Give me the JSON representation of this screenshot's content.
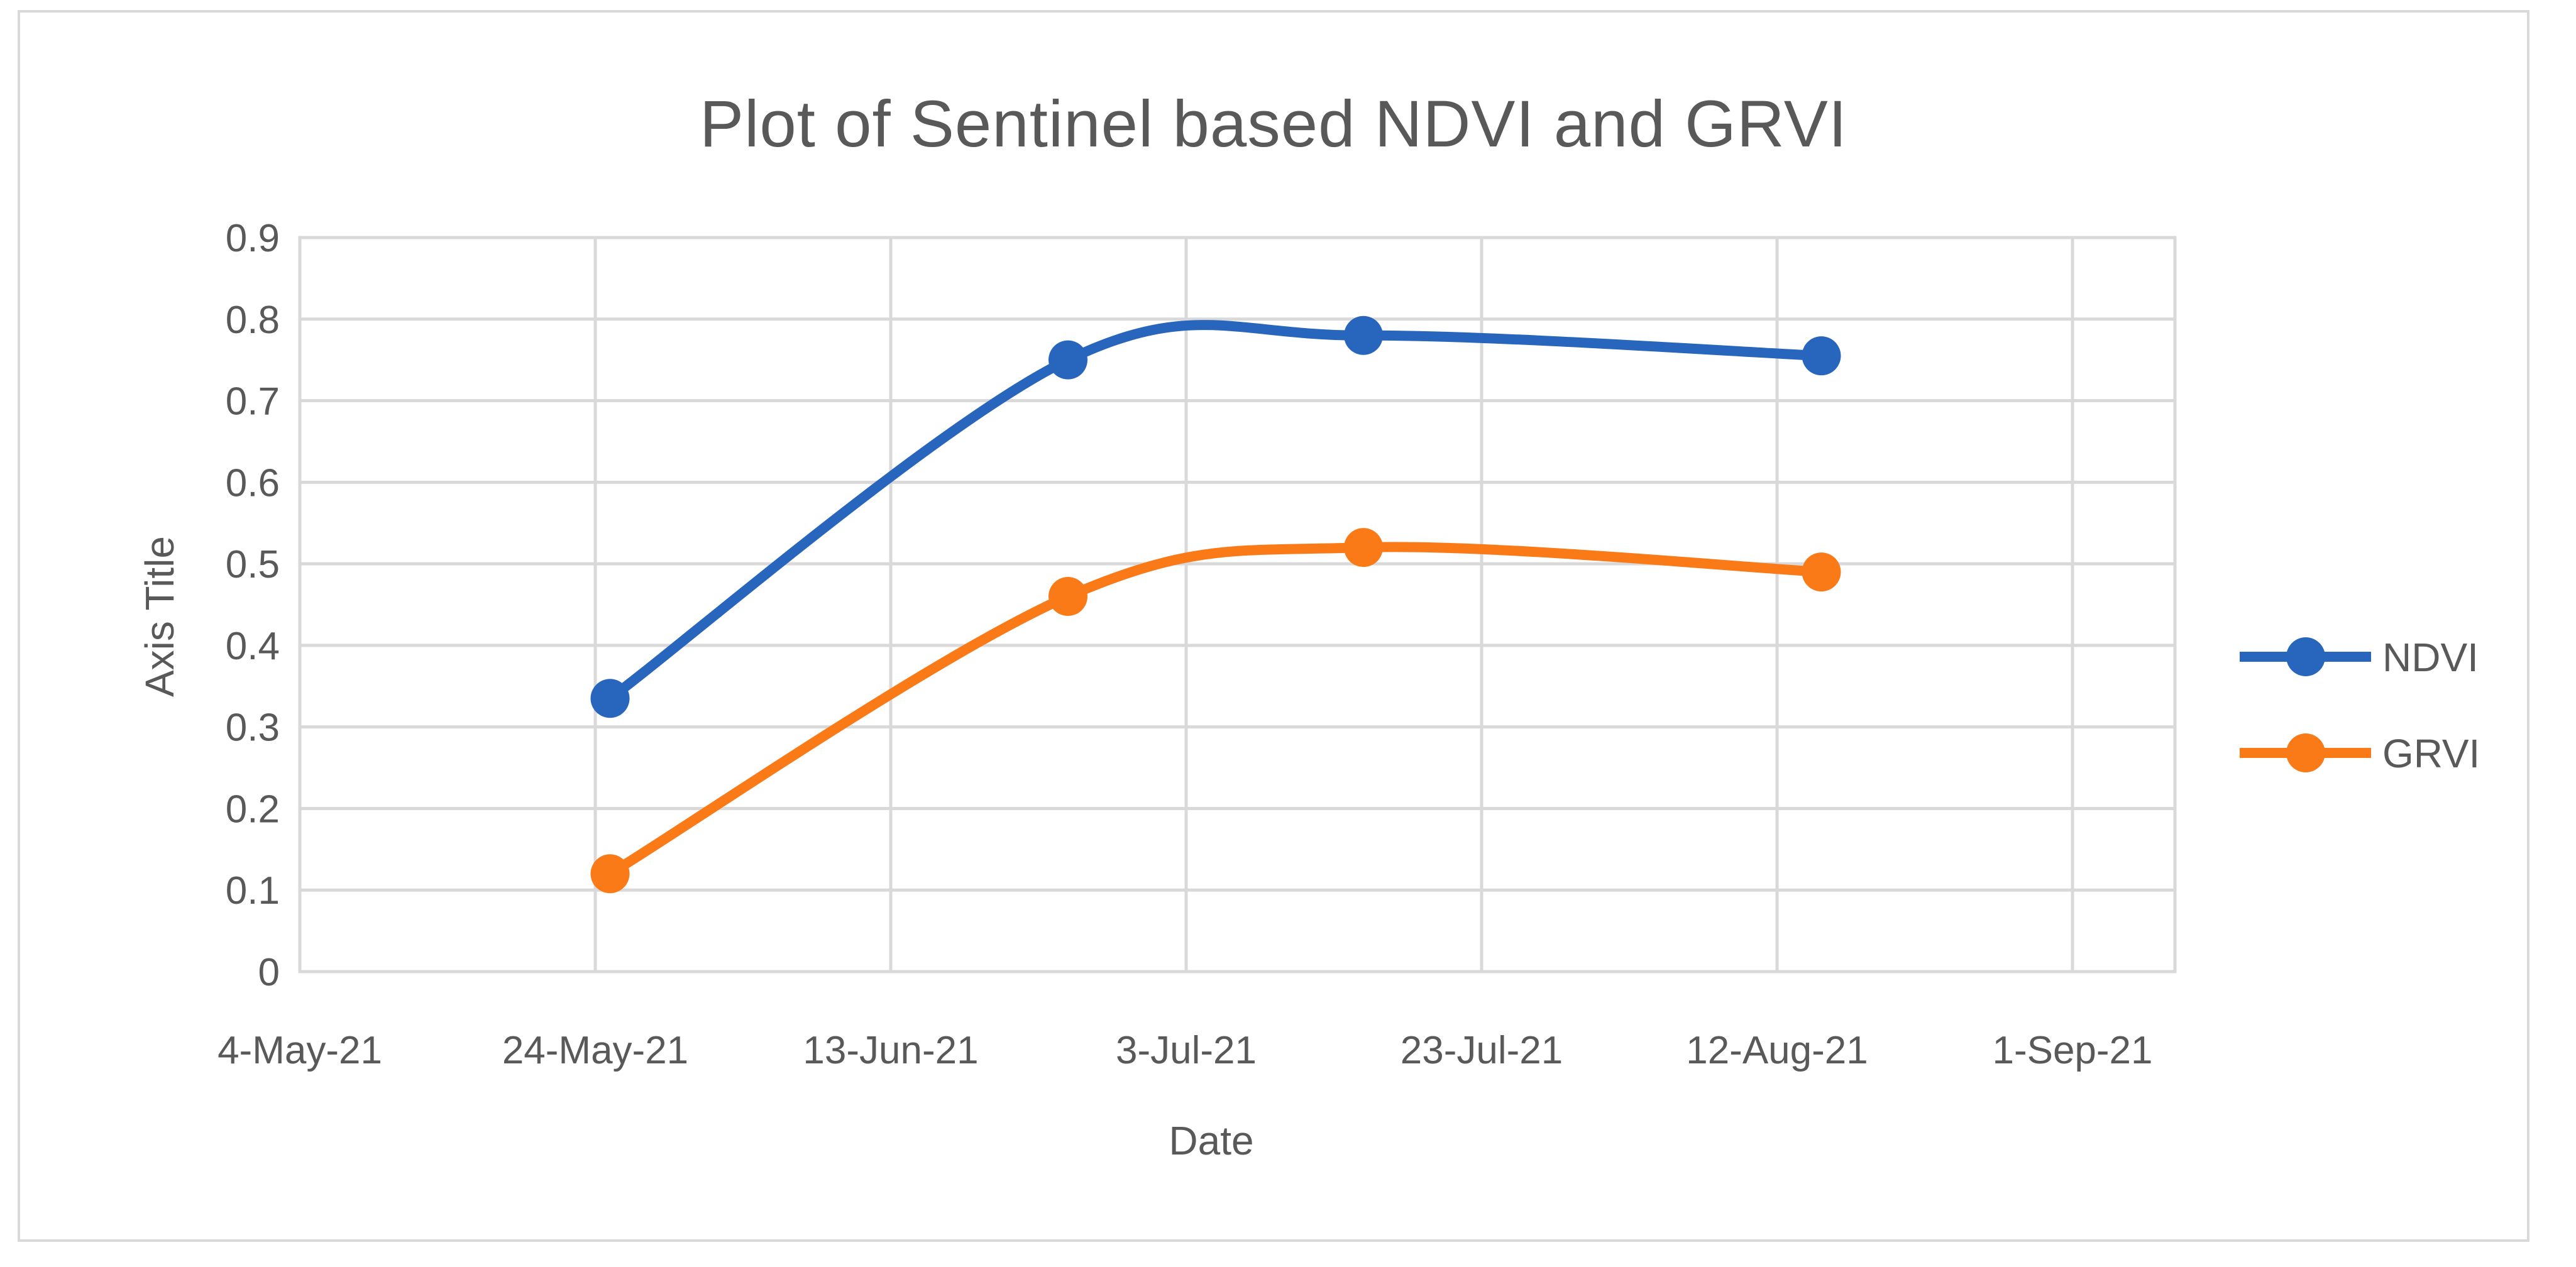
{
  "chart": {
    "title": "Plot of Sentinel based NDVI and GRVI",
    "x_axis_title": "Date",
    "y_axis_title": "Axis Title",
    "colors": {
      "ndvi_blue": "#2866be",
      "grvi_orange": "#fa7a18",
      "gridline_gray": "#d9d9d9",
      "text_gray": "#595959",
      "background": "#ffffff"
    }
  },
  "chart_data": {
    "type": "line",
    "title": "Plot of Sentinel based NDVI and GRVI",
    "xlabel": "Date",
    "ylabel": "Axis Title",
    "x_tick_labels": [
      "4-May-21",
      "24-May-21",
      "13-Jun-21",
      "3-Jul-21",
      "23-Jul-21",
      "12-Aug-21",
      "1-Sep-21"
    ],
    "x_tick_days": [
      0,
      20,
      40,
      60,
      80,
      100,
      120
    ],
    "x_range_days": [
      0,
      127
    ],
    "y_tick_labels": [
      "0",
      "0.1",
      "0.2",
      "0.3",
      "0.4",
      "0.5",
      "0.6",
      "0.7",
      "0.8",
      "0.9"
    ],
    "y_ticks": [
      0,
      0.1,
      0.2,
      0.3,
      0.4,
      0.5,
      0.6,
      0.7,
      0.8,
      0.9
    ],
    "ylim": [
      0,
      0.9
    ],
    "grid": true,
    "smooth": true,
    "legend_position": "right",
    "series": [
      {
        "name": "NDVI",
        "color": "#2866be",
        "x_days": [
          21,
          52,
          72,
          103
        ],
        "x_dates_est": [
          "25-May-21",
          "25-Jun-21",
          "15-Jul-21",
          "15-Aug-21"
        ],
        "values": [
          0.335,
          0.75,
          0.78,
          0.755
        ]
      },
      {
        "name": "GRVI",
        "color": "#fa7a18",
        "x_days": [
          21,
          52,
          72,
          103
        ],
        "x_dates_est": [
          "25-May-21",
          "25-Jun-21",
          "15-Jul-21",
          "15-Aug-21"
        ],
        "values": [
          0.12,
          0.46,
          0.52,
          0.49
        ]
      }
    ]
  }
}
